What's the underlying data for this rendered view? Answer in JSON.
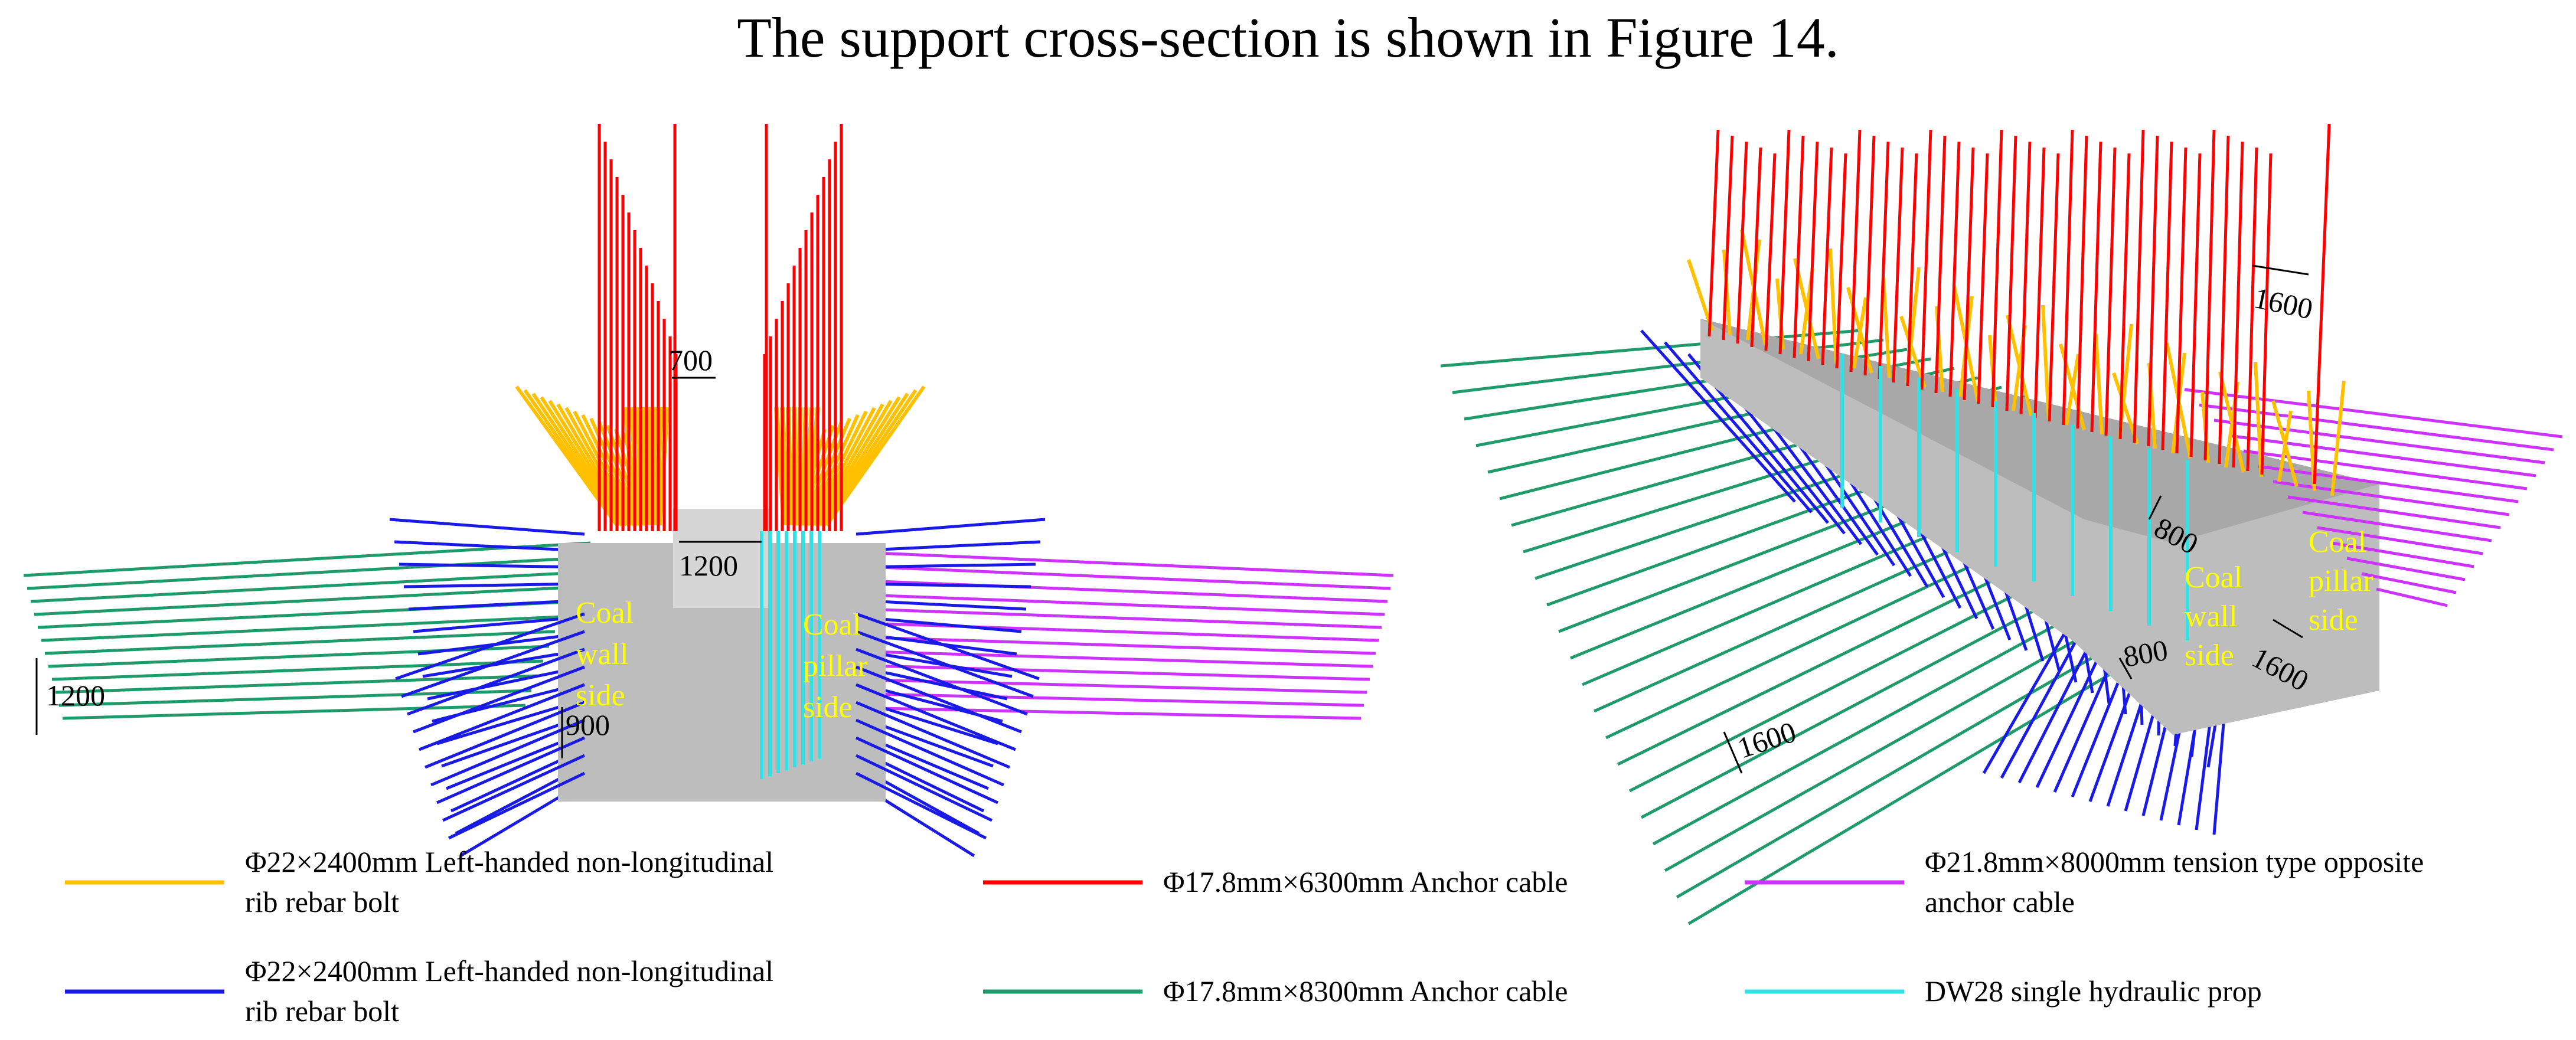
{
  "caption": "The support cross-section is shown in Figure 14.",
  "colors": {
    "yellow_bolt": "#FFC000",
    "blue_bolt": "#1A1AE6",
    "red_cable": "#FF0000",
    "green_cable": "#1F9A6A",
    "magenta_cable": "#CC33FF",
    "cyan_prop": "#33E0E6",
    "roadway": "#BDBDBD",
    "side_label": "#FFFF00"
  },
  "left_view": {
    "dims": {
      "top_spacing": "700",
      "width": "1200",
      "rib_spacing": "1200",
      "rib_offset": "900"
    },
    "coal_wall_side": [
      "Coal",
      "wall",
      "side"
    ],
    "coal_pillar_side": [
      "Coal",
      "pillar",
      "side"
    ]
  },
  "right_view": {
    "dims": {
      "roof_spacing": "1600",
      "roof_offset": "800",
      "pillar_spacing": "1600",
      "rib_offset": "800",
      "rib_spacing": "1600"
    },
    "coal_wall_side": [
      "Coal",
      "wall",
      "side"
    ],
    "coal_pillar_side": [
      "Coal",
      "pillar",
      "side"
    ]
  },
  "legend": [
    {
      "color": "#FFC000",
      "lines": [
        "Φ22×2400mm Left-handed non-longitudinal",
        "rib rebar bolt"
      ]
    },
    {
      "color": "#FF0000",
      "lines": [
        "Φ17.8mm×6300mm Anchor cable"
      ]
    },
    {
      "color": "#CC33FF",
      "lines": [
        "Φ21.8mm×8000mm tension type opposite",
        "anchor cable"
      ]
    },
    {
      "color": "#1A1AE6",
      "lines": [
        "Φ22×2400mm Left-handed non-longitudinal",
        "rib rebar bolt"
      ]
    },
    {
      "color": "#1F9A6A",
      "lines": [
        "Φ17.8mm×8300mm Anchor cable"
      ]
    },
    {
      "color": "#33E0E6",
      "lines": [
        "DW28 single hydraulic prop"
      ]
    }
  ]
}
